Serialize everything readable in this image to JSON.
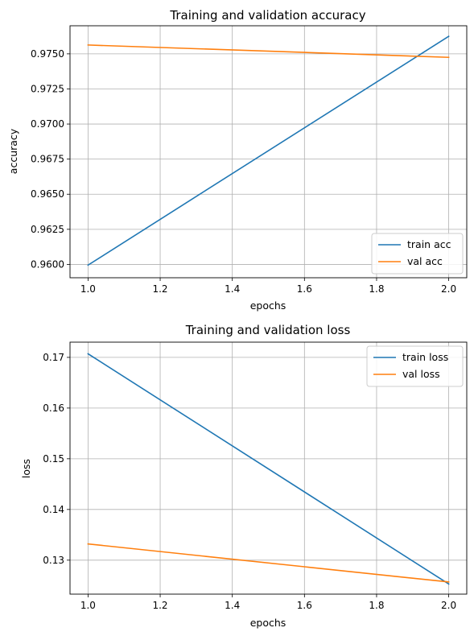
{
  "colors": {
    "train": "#1f77b4",
    "val": "#ff7f0e",
    "grid": "#b0b0b0",
    "axis": "#000000",
    "legend_border": "#cccccc"
  },
  "chart_data": [
    {
      "type": "line",
      "title": "Training and validation accuracy",
      "xlabel": "epochs",
      "ylabel": "accuracy",
      "xlim": [
        0.95,
        2.05
      ],
      "ylim": [
        0.95905,
        0.977
      ],
      "xticks": [
        1.0,
        1.2,
        1.4,
        1.6,
        1.8,
        2.0
      ],
      "xtick_labels": [
        "1.0",
        "1.2",
        "1.4",
        "1.6",
        "1.8",
        "2.0"
      ],
      "yticks": [
        0.96,
        0.9625,
        0.965,
        0.9675,
        0.97,
        0.9725,
        0.975
      ],
      "ytick_labels": [
        "0.9600",
        "0.9625",
        "0.9650",
        "0.9675",
        "0.9700",
        "0.9725",
        "0.9750"
      ],
      "grid": true,
      "legend_position": "lower right",
      "series": [
        {
          "name": "train acc",
          "color": "train",
          "x": [
            1.0,
            2.0
          ],
          "y": [
            0.95995,
            0.97625
          ]
        },
        {
          "name": "val acc",
          "color": "val",
          "x": [
            1.0,
            2.0
          ],
          "y": [
            0.97563,
            0.97475
          ]
        }
      ]
    },
    {
      "type": "line",
      "title": "Training and validation loss",
      "xlabel": "epochs",
      "ylabel": "loss",
      "xlim": [
        0.95,
        2.05
      ],
      "ylim": [
        0.1233,
        0.173
      ],
      "xticks": [
        1.0,
        1.2,
        1.4,
        1.6,
        1.8,
        2.0
      ],
      "xtick_labels": [
        "1.0",
        "1.2",
        "1.4",
        "1.6",
        "1.8",
        "2.0"
      ],
      "yticks": [
        0.13,
        0.14,
        0.15,
        0.16,
        0.17
      ],
      "ytick_labels": [
        "0.13",
        "0.14",
        "0.15",
        "0.16",
        "0.17"
      ],
      "grid": true,
      "legend_position": "upper right",
      "series": [
        {
          "name": "train loss",
          "color": "train",
          "x": [
            1.0,
            2.0
          ],
          "y": [
            0.1707,
            0.1253
          ]
        },
        {
          "name": "val loss",
          "color": "val",
          "x": [
            1.0,
            2.0
          ],
          "y": [
            0.1332,
            0.1257
          ]
        }
      ]
    }
  ]
}
